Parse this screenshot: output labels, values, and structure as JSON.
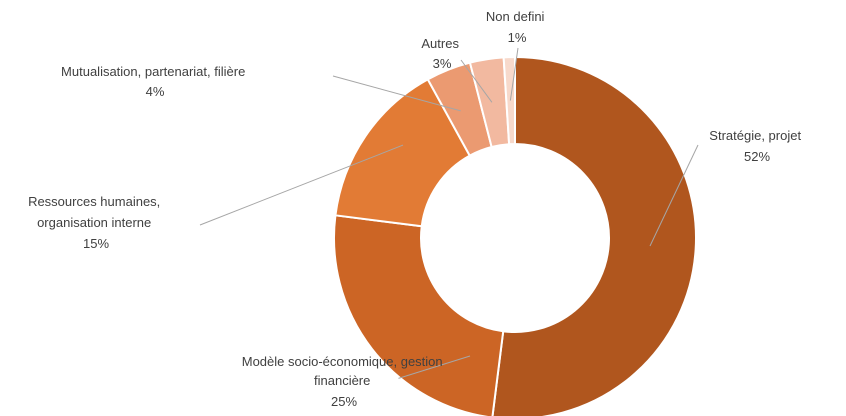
{
  "chart_data": {
    "type": "pie",
    "donut": true,
    "title": "",
    "legend": "none",
    "slices": [
      {
        "label_lines": [
          "Stratégie, projet"
        ],
        "value": 52,
        "value_label": "52%",
        "color": "#b0561e"
      },
      {
        "label_lines": [
          "Modèle socio-économique, gestion",
          "financière"
        ],
        "value": 25,
        "value_label": "25%",
        "color": "#cc6525"
      },
      {
        "label_lines": [
          "Ressources humaines,",
          "organisation interne"
        ],
        "value": 15,
        "value_label": "15%",
        "color": "#e27b35"
      },
      {
        "label_lines": [
          "Mutualisation, partenariat, filière"
        ],
        "value": 4,
        "value_label": "4%",
        "color": "#eb9a71"
      },
      {
        "label_lines": [
          "Autres"
        ],
        "value": 3,
        "value_label": "3%",
        "color": "#f2b9a0"
      },
      {
        "label_lines": [
          "Non defini"
        ],
        "value": 1,
        "value_label": "1%",
        "color": "#f7d9cb"
      }
    ]
  }
}
